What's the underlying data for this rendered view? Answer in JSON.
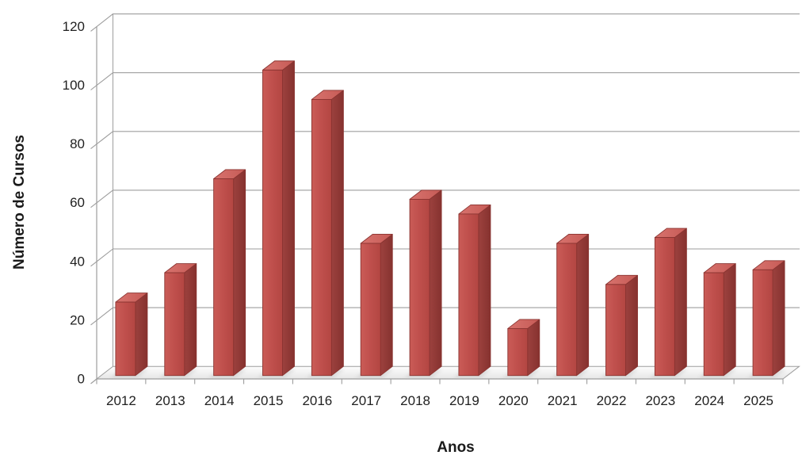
{
  "chart_data": {
    "type": "bar",
    "style": "3d-column",
    "title": "",
    "xlabel": "Anos",
    "ylabel": "Número de Cursos",
    "categories": [
      "2012",
      "2013",
      "2014",
      "2015",
      "2016",
      "2017",
      "2018",
      "2019",
      "2020",
      "2021",
      "2022",
      "2023",
      "2024",
      "2025"
    ],
    "values": [
      25,
      35,
      67,
      104,
      94,
      45,
      60,
      55,
      16,
      45,
      31,
      47,
      35,
      36
    ],
    "ylim": [
      0,
      120
    ],
    "ytick_interval": 20,
    "yticks": [
      "0",
      "20",
      "40",
      "60",
      "80",
      "100",
      "120"
    ],
    "grid": true,
    "legend_position": "none",
    "colors": {
      "bar_front": "#c0504d",
      "bar_front_light": "#ca5c57",
      "bar_front_dark": "#b34642",
      "bar_top_light": "#d8736e",
      "bar_top_dark": "#c65b56",
      "bar_side_light": "#9c413e",
      "bar_side_dark": "#86322f",
      "bar_border": "#8a3431",
      "gridline": "#9d9d9d",
      "axis_line": "#9d9d9d",
      "floor_back": "#fdfdfd",
      "floor_front": "#e6e6e6",
      "shadow": "#bfbfbf",
      "label_text": "#212121",
      "background": "#ffffff"
    }
  }
}
